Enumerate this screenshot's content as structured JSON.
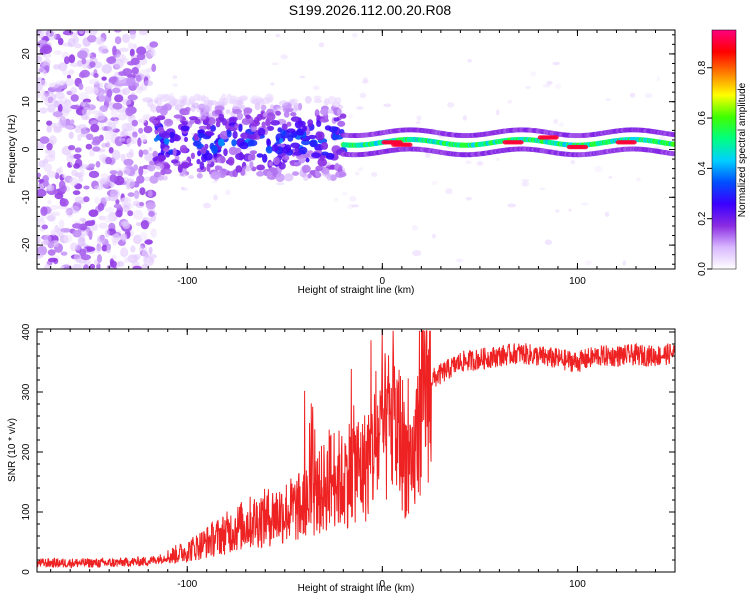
{
  "title": "S199.2026.112.00.20.R08",
  "chart_data": [
    {
      "type": "heatmap",
      "title": "S199.2026.112.00.20.R08",
      "xlabel": "Height of straight line (km)",
      "ylabel": "Frequency (Hz)",
      "xlim": [
        -177,
        150
      ],
      "ylim": [
        -25,
        25
      ],
      "xticks": [
        -100,
        0,
        100
      ],
      "yticks": [
        -20,
        -10,
        0,
        10,
        20
      ],
      "colorbar": {
        "label": "Normalized spectral amplitude",
        "range": [
          0,
          0.95
        ],
        "ticks": [
          "0.0",
          "0.2",
          "0.4",
          "0.6",
          "0.8"
        ],
        "tick_values": [
          0,
          0.2,
          0.4,
          0.6,
          0.8
        ],
        "colors": [
          "#ffffff",
          "#d9b8ff",
          "#8a2be2",
          "#3a00ff",
          "#0050ff",
          "#00d0ff",
          "#00ff80",
          "#40ff00",
          "#ffff00",
          "#ff8000",
          "#ff0000",
          "#ff0080"
        ]
      },
      "regions": [
        {
          "name": "noise",
          "x_range": [
            -177,
            -117
          ],
          "y_range": [
            -25,
            25
          ],
          "amplitude": 0.12
        },
        {
          "name": "scattered-signal",
          "x_range": [
            -117,
            -20
          ],
          "y_range": [
            -6,
            11
          ],
          "amplitude": 0.3
        },
        {
          "name": "coherent-signal",
          "x_range": [
            -20,
            150
          ],
          "y_center": 1.5,
          "y_halfwidth": 2.5,
          "amplitude": 0.55
        }
      ],
      "peaks": [
        {
          "x": 5,
          "y": 1.5,
          "amplitude": 0.9
        },
        {
          "x": 10,
          "y": 1,
          "amplitude": 0.9
        },
        {
          "x": 67,
          "y": 1.5,
          "amplitude": 0.9
        },
        {
          "x": 85,
          "y": 2.5,
          "amplitude": 0.9
        },
        {
          "x": 100,
          "y": 0.5,
          "amplitude": 0.9
        },
        {
          "x": 125,
          "y": 1.5,
          "amplitude": 0.9
        }
      ]
    },
    {
      "type": "line",
      "xlabel": "Height of straight line (km)",
      "ylabel": "SNR (10 * v/v)",
      "xlim": [
        -177,
        150
      ],
      "ylim": [
        0,
        405
      ],
      "xticks": [
        -100,
        0,
        100
      ],
      "yticks": [
        0,
        100,
        200,
        300,
        400
      ],
      "series": [
        {
          "name": "SNR",
          "color": "#ee2222",
          "x": [
            -177,
            -160,
            -140,
            -120,
            -110,
            -100,
            -90,
            -80,
            -70,
            -60,
            -50,
            -40,
            -30,
            -25,
            -20,
            -15,
            -10,
            -5,
            0,
            5,
            10,
            15,
            20,
            25,
            30,
            40,
            50,
            60,
            70,
            80,
            90,
            100,
            110,
            120,
            130,
            140,
            150
          ],
          "values": [
            15,
            15,
            15,
            18,
            25,
            35,
            50,
            65,
            80,
            90,
            100,
            110,
            140,
            160,
            150,
            180,
            170,
            200,
            230,
            250,
            220,
            150,
            300,
            320,
            330,
            350,
            355,
            360,
            365,
            360,
            355,
            350,
            360,
            360,
            362,
            360,
            365
          ]
        }
      ]
    }
  ]
}
